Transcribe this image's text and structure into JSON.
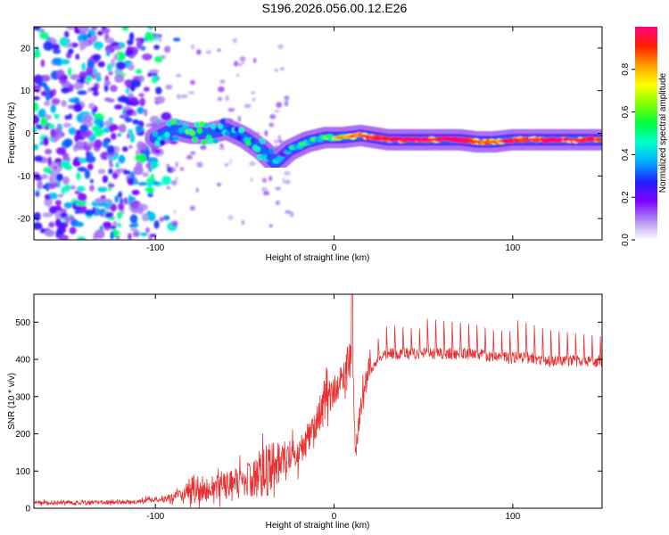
{
  "title": "S196.2026.056.00.12.E26",
  "chart_data": [
    {
      "type": "heatmap",
      "name": "spectrogram",
      "xlabel": "Height of straight line (km)",
      "ylabel": "Frequency (Hz)",
      "xlim": [
        -168,
        150
      ],
      "ylim": [
        -25,
        25
      ],
      "x_ticks": [
        -100,
        0,
        100
      ],
      "y_ticks": [
        20,
        10,
        0,
        -10,
        -20
      ],
      "colorbar": {
        "label": "Normalized spectral amplitude",
        "range": [
          0,
          1
        ],
        "ticks": [
          "0.0",
          "0.2",
          "0.4",
          "0.6",
          "0.8"
        ],
        "colors": [
          "#ffffff",
          "#b08cf0",
          "#7f00ff",
          "#2020ff",
          "#00aaff",
          "#00ffcc",
          "#00ff40",
          "#80ff00",
          "#ffff00",
          "#ffa000",
          "#ff2000",
          "#ff0080"
        ]
      },
      "ridge_line": {
        "x": [
          -100,
          -90,
          -80,
          -70,
          -60,
          -50,
          -40,
          -33,
          -25,
          -15,
          -5,
          5,
          15,
          30,
          50,
          70,
          80,
          90,
          100,
          110,
          130,
          150
        ],
        "y": [
          -1,
          1,
          0,
          0,
          1,
          -1,
          -4,
          -7,
          -4,
          -2,
          -1,
          -1,
          -0.5,
          -1.5,
          -1.5,
          -1.5,
          -2,
          -2,
          -1.5,
          -1.5,
          -1.5,
          -1.5
        ],
        "amplitude": [
          0.4,
          0.45,
          0.45,
          0.45,
          0.4,
          0.4,
          0.35,
          0.3,
          0.35,
          0.45,
          0.55,
          0.7,
          0.85,
          0.9,
          0.95,
          0.95,
          0.85,
          0.8,
          0.85,
          0.9,
          0.9,
          0.85
        ]
      },
      "noise_region_x": [
        -168,
        -100
      ]
    },
    {
      "type": "line",
      "name": "snr",
      "xlabel": "Height of straight line (km)",
      "ylabel": "SNR (10 * v/v)",
      "xlim": [
        -168,
        150
      ],
      "ylim": [
        0,
        575
      ],
      "x_ticks": [
        -100,
        0,
        100
      ],
      "y_ticks": [
        0,
        100,
        200,
        300,
        400,
        500
      ],
      "color": "#e83030",
      "series": [
        {
          "name": "SNR envelope",
          "x": [
            -168,
            -140,
            -110,
            -95,
            -85,
            -80,
            -70,
            -60,
            -50,
            -40,
            -35,
            -30,
            -25,
            -20,
            -15,
            -10,
            -5,
            0,
            5,
            8,
            10,
            11,
            12,
            15,
            20,
            25,
            30,
            40,
            50,
            60,
            70,
            80,
            90,
            100,
            110,
            120,
            130,
            140,
            150
          ],
          "base": [
            15,
            15,
            18,
            25,
            35,
            50,
            55,
            60,
            70,
            90,
            110,
            120,
            130,
            150,
            180,
            230,
            280,
            320,
            360,
            390,
            420,
            300,
            140,
            280,
            380,
            420,
            440,
            440,
            440,
            440,
            440,
            440,
            430,
            430,
            430,
            420,
            420,
            420,
            420
          ],
          "amp": [
            10,
            10,
            12,
            18,
            30,
            80,
            60,
            70,
            90,
            140,
            150,
            110,
            110,
            80,
            80,
            100,
            110,
            90,
            90,
            100,
            120,
            60,
            30,
            70,
            70,
            60,
            90,
            90,
            90,
            90,
            90,
            90,
            90,
            100,
            90,
            90,
            90,
            90,
            90
          ]
        }
      ]
    }
  ]
}
